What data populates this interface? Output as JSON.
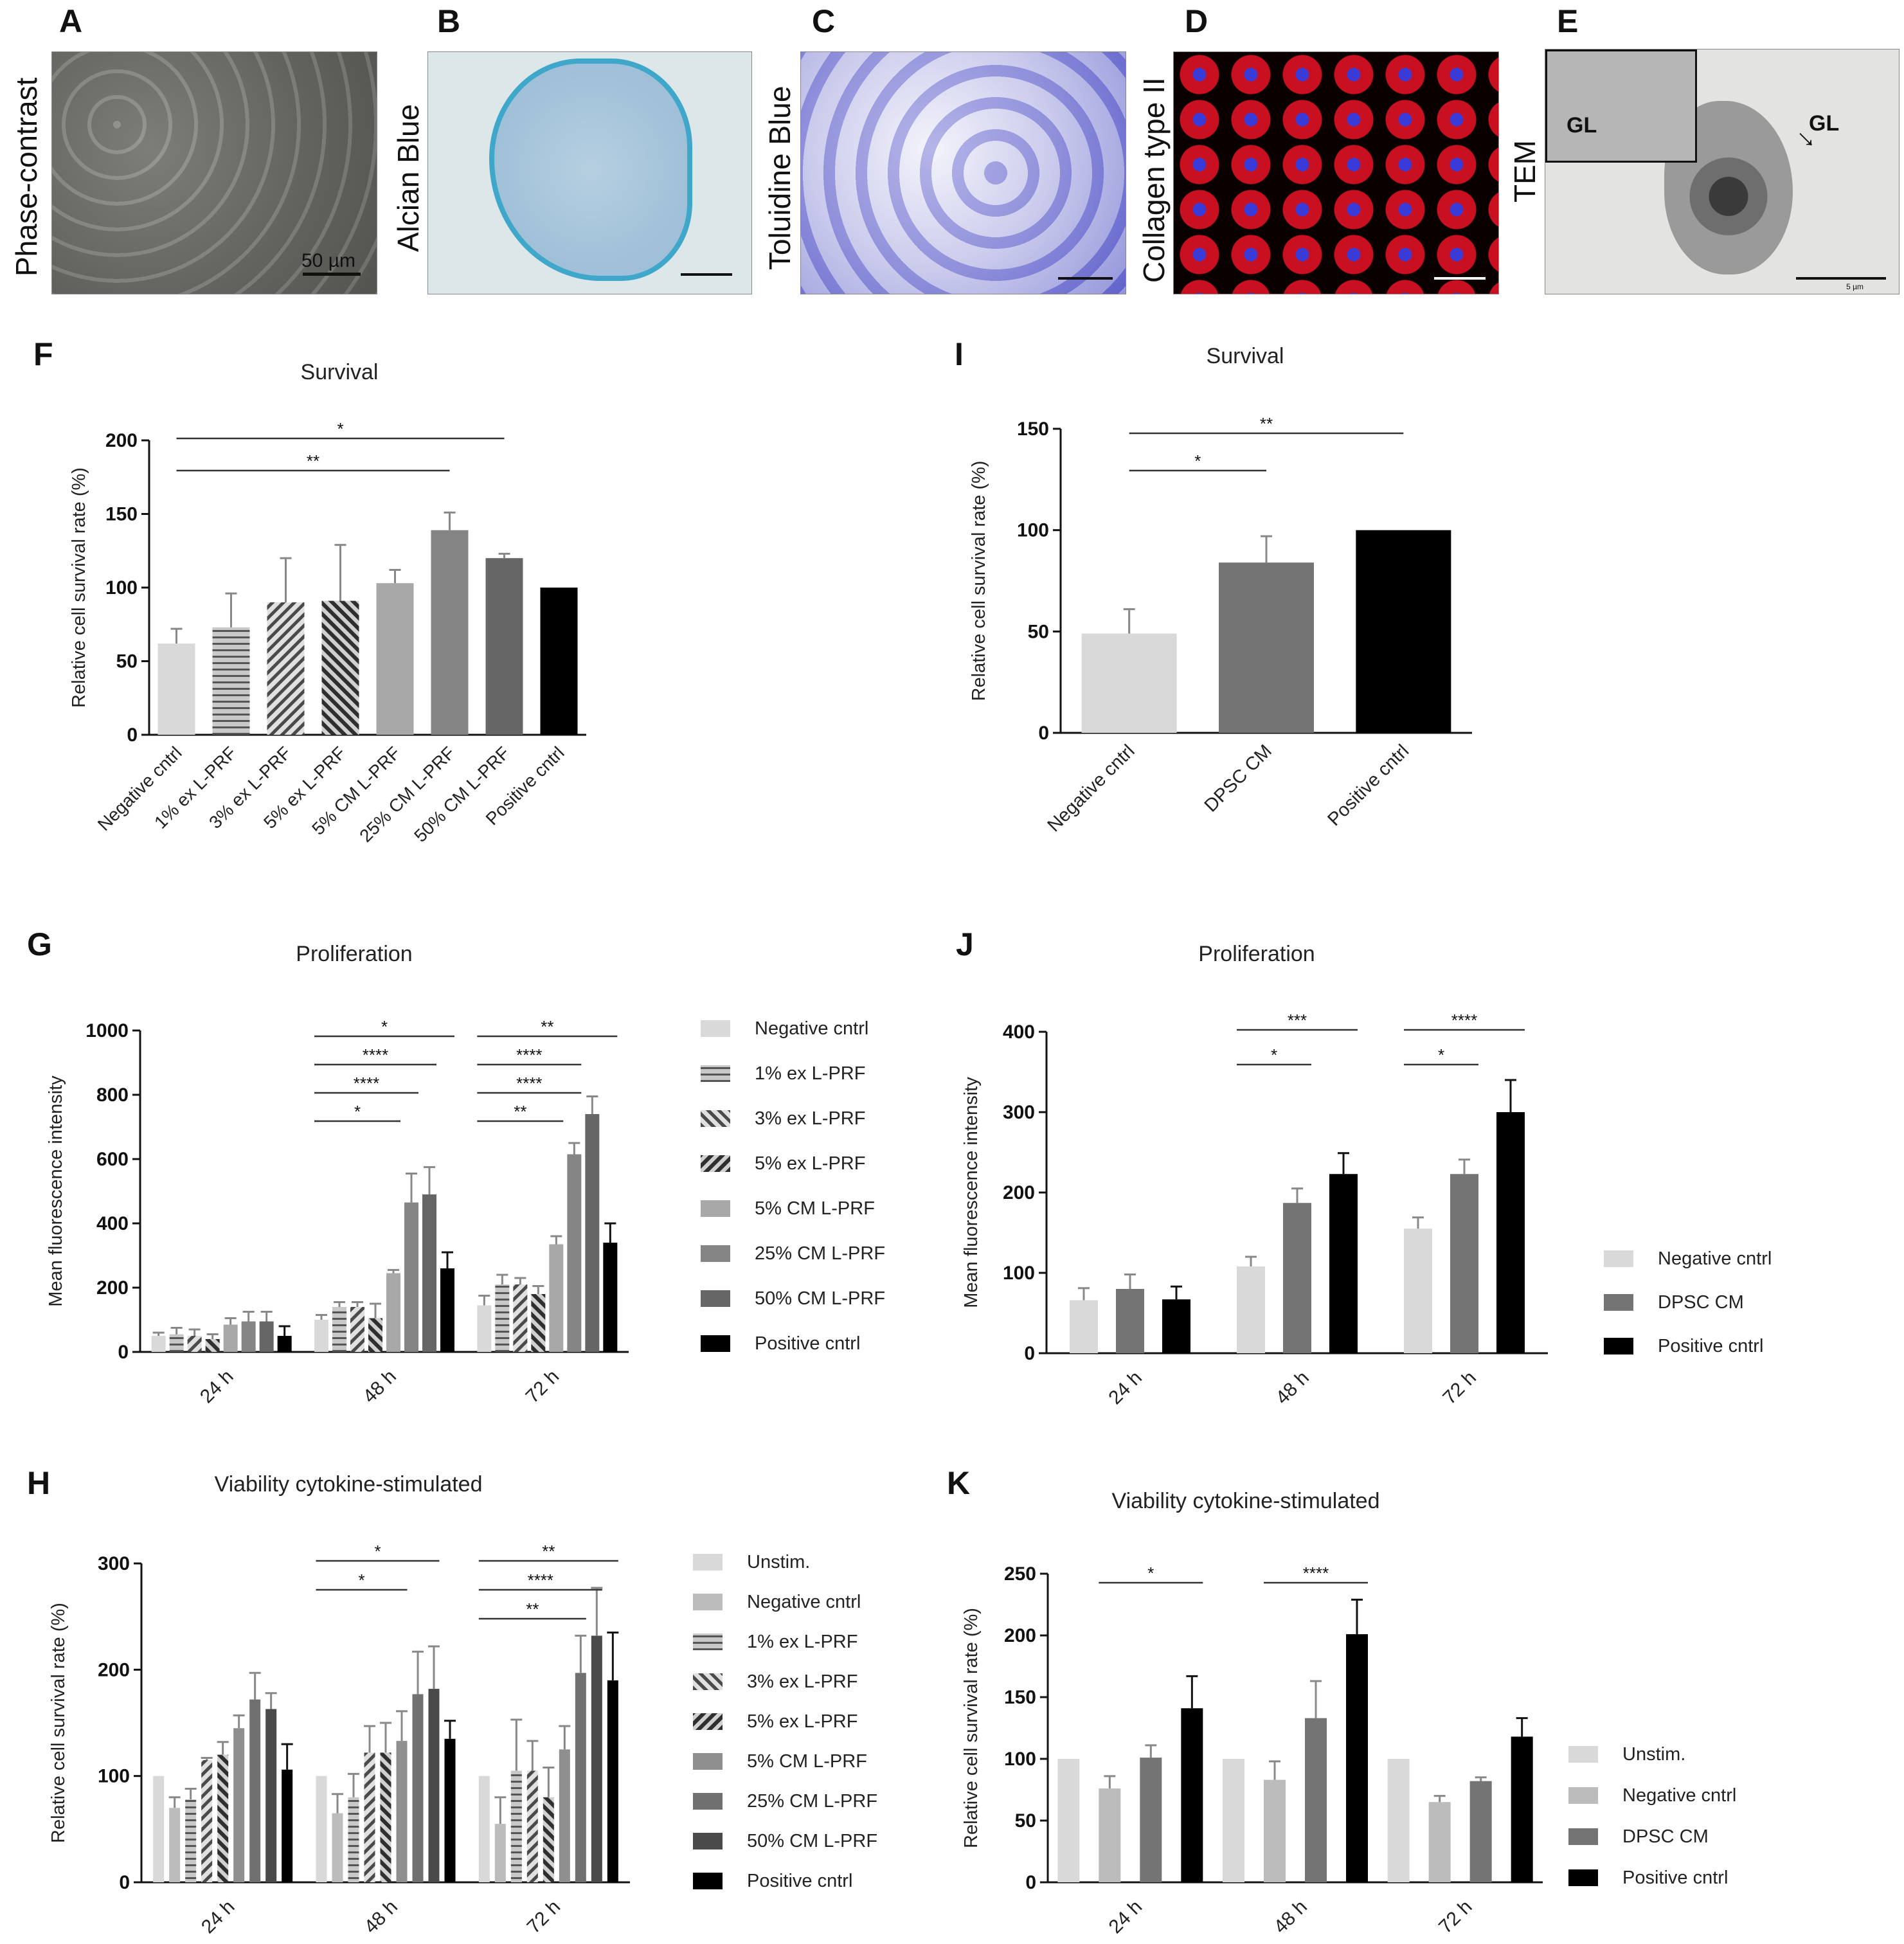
{
  "panels": {
    "A": {
      "letter": "A",
      "label": "Phase-contrast",
      "scalebar": "50 µm"
    },
    "B": {
      "letter": "B",
      "label": "Alcian Blue"
    },
    "C": {
      "letter": "C",
      "label": "Toluidine Blue"
    },
    "D": {
      "letter": "D",
      "label": "Collagen type II"
    },
    "E": {
      "letter": "E",
      "label": "TEM",
      "inset_label": "GL",
      "arrow_label": "GL",
      "scalebar": "5 µm"
    }
  },
  "colors": {
    "c_neg": "#d9d9d9",
    "c_1ex": "#9e9e9e",
    "c_3ex": "#6a6a6a",
    "c_5ex": "#4a4a4a",
    "c_5cm": "#a8a8a8",
    "c_25cm": "#858585",
    "c_50cm": "#666666",
    "c_pos": "#000000",
    "c_unstim": "#d9d9d9",
    "c_negH": "#bcbcbc",
    "c_dpsc": "#747474"
  },
  "chart_data": [
    {
      "id": "F",
      "letter": "F",
      "type": "bar",
      "title": "Survival",
      "xlabel": "",
      "ylabel": "Relative cell survival rate (%)",
      "ylim": [
        0,
        200
      ],
      "yticks": [
        "0",
        "50",
        "100",
        "150",
        "200"
      ],
      "categories": [
        "Negative cntrl",
        "1% ex L-PRF",
        "3% ex L-PRF",
        "5% ex L-PRF",
        "5% CM L-PRF",
        "25% CM L-PRF",
        "50% CM L-PRF",
        "Positive cntrl"
      ],
      "values": [
        62,
        73,
        90,
        91,
        103,
        139,
        120,
        100
      ],
      "errors": [
        10,
        23,
        30,
        38,
        9,
        12,
        3,
        0
      ],
      "significance": [
        {
          "from": 0,
          "to": 6,
          "label": "*"
        },
        {
          "from": 0,
          "to": 5,
          "label": "**"
        }
      ]
    },
    {
      "id": "I",
      "letter": "I",
      "type": "bar",
      "title": "Survival",
      "xlabel": "",
      "ylabel": "Relative cell survival rate (%)",
      "ylim": [
        0,
        150
      ],
      "yticks": [
        "0",
        "50",
        "100",
        "150"
      ],
      "categories": [
        "Negative cntrl",
        "DPSC CM",
        "Positive cntrl"
      ],
      "values": [
        49,
        84,
        100
      ],
      "errors": [
        12,
        13,
        0
      ],
      "significance": [
        {
          "from": 0,
          "to": 2,
          "label": "**"
        },
        {
          "from": 0,
          "to": 1,
          "label": "*"
        }
      ]
    },
    {
      "id": "G",
      "letter": "G",
      "type": "bar",
      "title": "Proliferation",
      "xlabel": "",
      "ylabel": "Mean fluorescence intensity",
      "ylim": [
        0,
        1000
      ],
      "yticks": [
        "0",
        "200",
        "400",
        "600",
        "800",
        "1000"
      ],
      "categories": [
        "24 h",
        "48 h",
        "72 h"
      ],
      "series": [
        {
          "name": "Negative cntrl",
          "values": [
            50,
            100,
            145
          ],
          "errors": [
            10,
            15,
            30
          ]
        },
        {
          "name": "1% ex L-PRF",
          "values": [
            55,
            140,
            210
          ],
          "errors": [
            20,
            15,
            30
          ]
        },
        {
          "name": "3% ex L-PRF",
          "values": [
            50,
            140,
            210
          ],
          "errors": [
            20,
            15,
            20
          ]
        },
        {
          "name": "5% ex L-PRF",
          "values": [
            40,
            105,
            180
          ],
          "errors": [
            15,
            45,
            25
          ]
        },
        {
          "name": "5% CM L-PRF",
          "values": [
            85,
            245,
            335
          ],
          "errors": [
            20,
            10,
            25
          ]
        },
        {
          "name": "25% CM L-PRF",
          "values": [
            95,
            465,
            615
          ],
          "errors": [
            30,
            90,
            35
          ]
        },
        {
          "name": "50% CM L-PRF",
          "values": [
            95,
            490,
            740
          ],
          "errors": [
            30,
            85,
            55
          ]
        },
        {
          "name": "Positive cntrl",
          "values": [
            50,
            260,
            340
          ],
          "errors": [
            30,
            50,
            60
          ]
        }
      ],
      "significance": [
        {
          "group": 1,
          "from": 0,
          "to": 7,
          "label": "*"
        },
        {
          "group": 1,
          "from": 0,
          "to": 6,
          "label": "****"
        },
        {
          "group": 1,
          "from": 0,
          "to": 5,
          "label": "****"
        },
        {
          "group": 1,
          "from": 0,
          "to": 4,
          "label": "*"
        },
        {
          "group": 2,
          "from": 0,
          "to": 7,
          "label": "**"
        },
        {
          "group": 2,
          "from": 0,
          "to": 5,
          "label": "****"
        },
        {
          "group": 2,
          "from": 0,
          "to": 5,
          "label": "****"
        },
        {
          "group": 2,
          "from": 0,
          "to": 4,
          "label": "**"
        }
      ]
    },
    {
      "id": "J",
      "letter": "J",
      "type": "bar",
      "title": "Proliferation",
      "xlabel": "",
      "ylabel": "Mean fluorescence intensity",
      "ylim": [
        0,
        400
      ],
      "yticks": [
        "0",
        "100",
        "200",
        "300",
        "400"
      ],
      "categories": [
        "24 h",
        "48 h",
        "72 h"
      ],
      "series": [
        {
          "name": "Negative cntrl",
          "values": [
            66,
            108,
            155
          ],
          "errors": [
            15,
            12,
            14
          ]
        },
        {
          "name": "DPSC CM",
          "values": [
            80,
            187,
            223
          ],
          "errors": [
            18,
            18,
            18
          ]
        },
        {
          "name": "Positive cntrl",
          "values": [
            67,
            223,
            300
          ],
          "errors": [
            16,
            26,
            40
          ]
        }
      ],
      "significance": [
        {
          "group": 1,
          "from": 0,
          "to": 2,
          "label": "***"
        },
        {
          "group": 1,
          "from": 0,
          "to": 1,
          "label": "*"
        },
        {
          "group": 2,
          "from": 0,
          "to": 2,
          "label": "****"
        },
        {
          "group": 2,
          "from": 0,
          "to": 1,
          "label": "*"
        }
      ]
    },
    {
      "id": "H",
      "letter": "H",
      "type": "bar",
      "title": "Viability cytokine-stimulated",
      "xlabel": "",
      "ylabel": "Relative cell survival rate (%)",
      "ylim": [
        0,
        300
      ],
      "yticks": [
        "0",
        "100",
        "200",
        "300"
      ],
      "categories": [
        "24 h",
        "48 h",
        "72 h"
      ],
      "series": [
        {
          "name": "Unstim.",
          "values": [
            100,
            100,
            100
          ],
          "errors": [
            0,
            0,
            0
          ]
        },
        {
          "name": "Negative cntrl",
          "values": [
            70,
            65,
            55
          ],
          "errors": [
            10,
            18,
            25
          ]
        },
        {
          "name": "1% ex L-PRF",
          "values": [
            78,
            80,
            105
          ],
          "errors": [
            10,
            22,
            48
          ]
        },
        {
          "name": "3% ex L-PRF",
          "values": [
            115,
            122,
            105
          ],
          "errors": [
            2,
            25,
            28
          ]
        },
        {
          "name": "5% ex L-PRF",
          "values": [
            120,
            122,
            80
          ],
          "errors": [
            12,
            28,
            28
          ]
        },
        {
          "name": "5% CM L-PRF",
          "values": [
            145,
            133,
            125
          ],
          "errors": [
            12,
            28,
            22
          ]
        },
        {
          "name": "25% CM L-PRF",
          "values": [
            172,
            177,
            197
          ],
          "errors": [
            25,
            40,
            35
          ]
        },
        {
          "name": "50% CM L-PRF",
          "values": [
            163,
            182,
            232
          ],
          "errors": [
            15,
            40,
            45
          ]
        },
        {
          "name": "Positive cntrl",
          "values": [
            106,
            135,
            190
          ],
          "errors": [
            24,
            17,
            45
          ]
        }
      ],
      "significance": [
        {
          "group": 1,
          "from": 0,
          "to": 7,
          "label": "*"
        },
        {
          "group": 1,
          "from": 0,
          "to": 5,
          "label": "*"
        },
        {
          "group": 2,
          "from": 0,
          "to": 8,
          "label": "**"
        },
        {
          "group": 2,
          "from": 0,
          "to": 7,
          "label": "****"
        },
        {
          "group": 2,
          "from": 0,
          "to": 6,
          "label": "**"
        }
      ]
    },
    {
      "id": "K",
      "letter": "K",
      "type": "bar",
      "title": "Viability cytokine-stimulated",
      "xlabel": "",
      "ylabel": "Relative cell survival rate (%)",
      "ylim": [
        0,
        250
      ],
      "yticks": [
        "0",
        "50",
        "100",
        "150",
        "200",
        "250"
      ],
      "categories": [
        "24 h",
        "48 h",
        "72 h"
      ],
      "series": [
        {
          "name": "Unstim.",
          "values": [
            100,
            100,
            100
          ],
          "errors": [
            0,
            0,
            0
          ]
        },
        {
          "name": "Negative cntrl",
          "values": [
            76,
            83,
            65
          ],
          "errors": [
            10,
            15,
            5
          ]
        },
        {
          "name": "DPSC CM",
          "values": [
            101,
            133,
            82
          ],
          "errors": [
            10,
            30,
            3
          ]
        },
        {
          "name": "Positive cntrl",
          "values": [
            141,
            201,
            118
          ],
          "errors": [
            26,
            28,
            15
          ]
        }
      ],
      "significance": [
        {
          "group": 0,
          "from": 1,
          "to": 3,
          "label": "*"
        },
        {
          "group": 1,
          "from": 1,
          "to": 3,
          "label": "****"
        }
      ]
    }
  ]
}
